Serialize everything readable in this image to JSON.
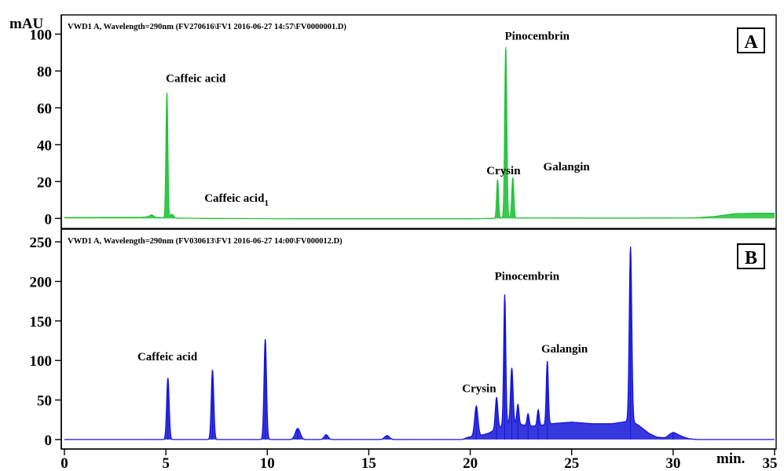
{
  "chart_data": [
    {
      "type": "line",
      "panel_label": "A",
      "header": "VWD1 A, Wavelength=290nm (FV270616\\FV1 2016-06-27 14:57\\FV0000001.D)",
      "ylabel": "mAU",
      "xlim": [
        0,
        35
      ],
      "ylim": [
        -5,
        110
      ],
      "yticks": [
        0,
        20,
        40,
        60,
        80,
        100
      ],
      "color": "#22c23a",
      "baseline": [
        [
          0,
          0.5
        ],
        [
          3,
          0.6
        ],
        [
          3.8,
          0.6
        ],
        [
          4.1,
          0.9
        ],
        [
          4.3,
          2.0
        ],
        [
          4.5,
          0.6
        ],
        [
          4.9,
          0.3
        ],
        [
          7,
          0.0
        ],
        [
          12,
          -0.2
        ],
        [
          20,
          -0.2
        ],
        [
          21,
          0.0
        ],
        [
          23,
          0.3
        ],
        [
          26,
          0.2
        ],
        [
          28,
          0.2
        ],
        [
          31,
          0.3
        ],
        [
          32,
          1.0
        ],
        [
          33,
          2.5
        ],
        [
          34,
          2.8
        ],
        [
          35,
          2.8
        ]
      ],
      "peaks": [
        {
          "rt": 5.05,
          "h": 68,
          "w": 0.045
        },
        {
          "rt": 5.3,
          "h": 2,
          "w": 0.08
        },
        {
          "rt": 21.35,
          "h": 21,
          "w": 0.045
        },
        {
          "rt": 21.75,
          "h": 93,
          "w": 0.05
        },
        {
          "rt": 22.1,
          "h": 22,
          "w": 0.05
        }
      ],
      "peak_labels": [
        {
          "text": "Caffeic acid",
          "rt": 5.0,
          "y": 74
        },
        {
          "text": "Caffeic acid",
          "sub": "1",
          "rt": 6.9,
          "y": 9
        },
        {
          "text": "Crysin",
          "rt": 20.8,
          "y": 24
        },
        {
          "text": "Pinocembrin",
          "rt": 21.7,
          "y": 97
        },
        {
          "text": "Galangin",
          "rt": 23.6,
          "y": 26
        }
      ]
    },
    {
      "type": "line",
      "panel_label": "B",
      "header": "VWD1 A, Wavelength=290nm (FV030613\\FV1 2016-06-27 14:00\\FV000012.D)",
      "xlabel": "min.",
      "xlim": [
        0,
        35
      ],
      "ylim": [
        -10,
        265
      ],
      "xticks": [
        0,
        5,
        10,
        15,
        20,
        25,
        30,
        35
      ],
      "yticks": [
        0,
        50,
        100,
        150,
        200,
        250
      ],
      "color": "#1414d8",
      "baseline": [
        [
          0,
          0
        ],
        [
          19.6,
          0
        ],
        [
          19.9,
          3
        ],
        [
          20.5,
          5
        ],
        [
          20.9,
          8
        ],
        [
          21.2,
          12
        ],
        [
          21.5,
          16
        ],
        [
          21.9,
          21
        ],
        [
          22.3,
          20
        ],
        [
          22.7,
          18
        ],
        [
          23.1,
          17
        ],
        [
          23.5,
          18
        ],
        [
          24.0,
          20
        ],
        [
          24.5,
          21
        ],
        [
          25.0,
          22
        ],
        [
          25.5,
          21
        ],
        [
          26.0,
          20
        ],
        [
          26.5,
          20
        ],
        [
          27.0,
          20
        ],
        [
          27.5,
          22
        ],
        [
          27.9,
          24
        ],
        [
          28.3,
          18
        ],
        [
          28.8,
          8
        ],
        [
          29.2,
          3
        ],
        [
          29.6,
          2
        ],
        [
          30.0,
          5
        ],
        [
          30.4,
          4
        ],
        [
          30.8,
          1
        ],
        [
          31.2,
          0
        ],
        [
          35,
          0
        ]
      ],
      "peaks": [
        {
          "rt": 5.1,
          "h": 78,
          "w": 0.06
        },
        {
          "rt": 7.3,
          "h": 88,
          "w": 0.06
        },
        {
          "rt": 9.9,
          "h": 127,
          "w": 0.06
        },
        {
          "rt": 11.5,
          "h": 14,
          "w": 0.12
        },
        {
          "rt": 12.9,
          "h": 6,
          "w": 0.1
        },
        {
          "rt": 15.9,
          "h": 5,
          "w": 0.12
        },
        {
          "rt": 20.3,
          "h": 38,
          "w": 0.08
        },
        {
          "rt": 21.3,
          "h": 40,
          "w": 0.06
        },
        {
          "rt": 21.7,
          "h": 165,
          "w": 0.05
        },
        {
          "rt": 22.05,
          "h": 70,
          "w": 0.06
        },
        {
          "rt": 22.35,
          "h": 25,
          "w": 0.05
        },
        {
          "rt": 22.85,
          "h": 15,
          "w": 0.05
        },
        {
          "rt": 23.35,
          "h": 20,
          "w": 0.05
        },
        {
          "rt": 23.8,
          "h": 80,
          "w": 0.05
        },
        {
          "rt": 27.9,
          "h": 220,
          "w": 0.06
        },
        {
          "rt": 30.0,
          "h": 4,
          "w": 0.2
        }
      ],
      "peak_labels": [
        {
          "text": "Caffeic acid",
          "rt": 3.6,
          "y": 100
        },
        {
          "text": "Crysin",
          "rt": 19.6,
          "y": 60
        },
        {
          "text": "Pinocembrin",
          "rt": 21.2,
          "y": 202
        },
        {
          "text": "Galangin",
          "rt": 23.5,
          "y": 110
        }
      ]
    }
  ]
}
